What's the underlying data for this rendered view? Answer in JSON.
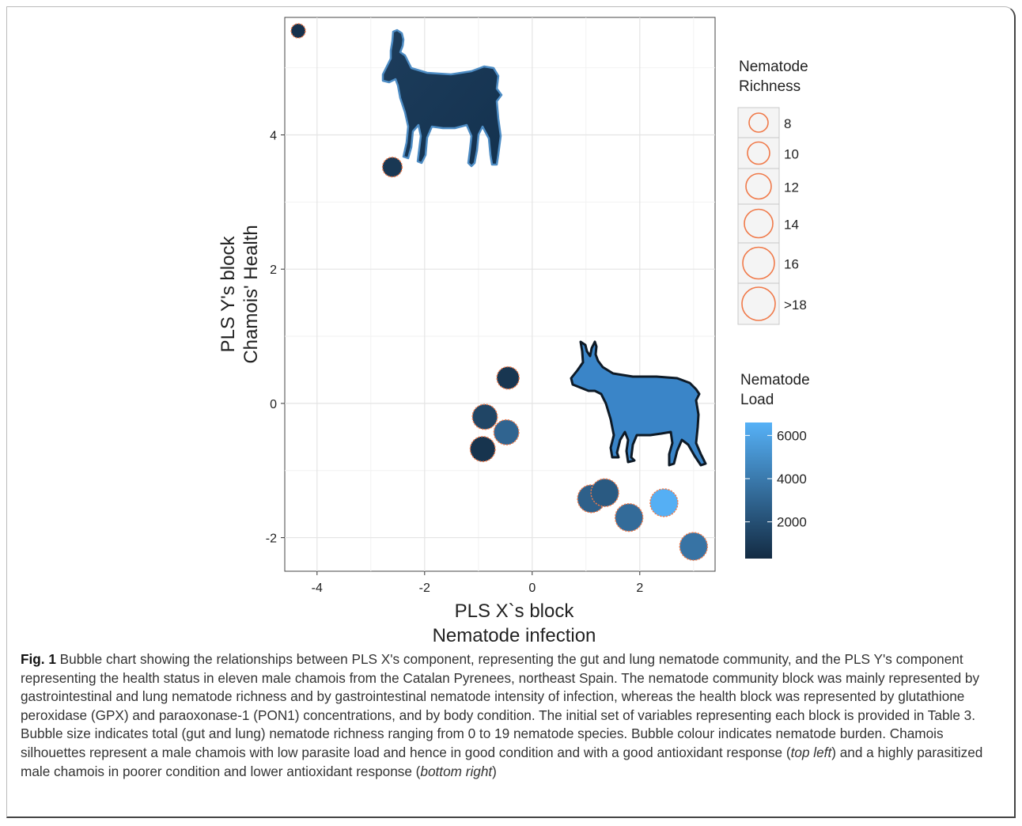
{
  "chart_data": {
    "type": "scatter",
    "xlabel_line1": "PLS X`s block",
    "xlabel_line2": "Nematode infection",
    "ylabel_line1": "PLS Y's block",
    "ylabel_line2": "Chamois' Health",
    "xlim": [
      -4.6,
      3.4
    ],
    "ylim": [
      -2.5,
      5.75
    ],
    "x_ticks": [
      -4,
      -2,
      0,
      2
    ],
    "x_tick_labels": [
      "-4",
      "-2",
      "0",
      "2"
    ],
    "y_ticks": [
      -2,
      0,
      2,
      4
    ],
    "y_tick_labels": [
      "-2",
      "0",
      "2",
      "4"
    ],
    "grid": true,
    "points": [
      {
        "x": -4.35,
        "y": 5.55,
        "richness": 8,
        "load": 600
      },
      {
        "x": -2.6,
        "y": 3.52,
        "richness": 10,
        "load": 900
      },
      {
        "x": -0.45,
        "y": 0.38,
        "richness": 11,
        "load": 800
      },
      {
        "x": -0.88,
        "y": -0.2,
        "richness": 12,
        "load": 1500
      },
      {
        "x": -0.48,
        "y": -0.43,
        "richness": 12,
        "load": 3000
      },
      {
        "x": -0.92,
        "y": -0.68,
        "richness": 12,
        "load": 700
      },
      {
        "x": 1.1,
        "y": -1.42,
        "richness": 13,
        "load": 2800
      },
      {
        "x": 1.35,
        "y": -1.33,
        "richness": 13,
        "load": 2500
      },
      {
        "x": 1.8,
        "y": -1.7,
        "richness": 13,
        "load": 3300
      },
      {
        "x": 2.45,
        "y": -1.48,
        "richness": 13,
        "load": 6500
      },
      {
        "x": 3.0,
        "y": -2.13,
        "richness": 13,
        "load": 3700
      }
    ],
    "size_legend": {
      "title_line1": "Nematode",
      "title_line2": "Richness",
      "items": [
        "8",
        "10",
        "12",
        "14",
        "16",
        ">18"
      ],
      "circle_stroke": "#f07a4a"
    },
    "color_legend": {
      "title_line1": "Nematode",
      "title_line2": "Load",
      "range": [
        300,
        6600
      ],
      "ticks": [
        2000,
        4000,
        6000
      ],
      "tick_labels": [
        "2000",
        "4000",
        "6000"
      ],
      "low_color": "#132b43",
      "high_color": "#56b1f7"
    },
    "point_stroke": "#f07a4a"
  },
  "caption": {
    "label": "Fig. 1",
    "text": " Bubble chart showing the relationships between PLS X's component, representing the gut and lung nematode community, and the PLS Y's component representing the health status in eleven male chamois from the Catalan Pyrenees, northeast Spain. The nematode community block was mainly represented by gastrointestinal and lung nematode richness and by gastrointestinal nematode intensity of infection, whereas the health block was represented by glutathione peroxidase (GPX) and paraoxonase-1 (PON1) concentrations, and by body condition. The initial set of variables representing each block is provided in Table 3. Bubble size indicates total (gut and lung) nematode richness ranging from 0 to 19 nematode species. Bubble colour indicates nematode burden. Chamois silhouettes represent a male chamois with low parasite load and hence in good condition and with a good antioxidant response (",
    "italic1": "top left",
    "text2": ") and a highly parasitized male chamois in poorer condition and lower antioxidant response (",
    "italic2": "bottom right",
    "text3": ")"
  }
}
